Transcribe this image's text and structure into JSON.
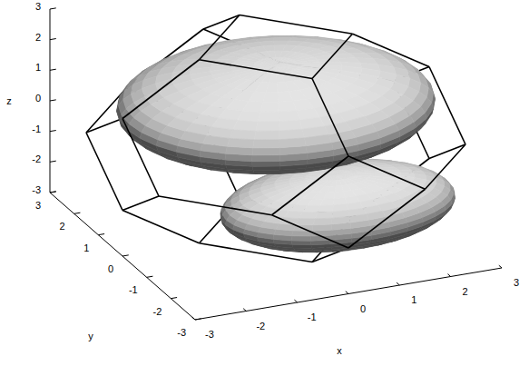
{
  "chart_data": {
    "type": "isosurface3d",
    "xlabel": "x",
    "ylabel": "y",
    "zlabel": "z",
    "xlim": [
      -3,
      3
    ],
    "ylim": [
      -3,
      3
    ],
    "zlim": [
      -3,
      3
    ],
    "xticks": [
      -3,
      -2,
      -1,
      0,
      1,
      2,
      3
    ],
    "yticks": [
      -3,
      -2,
      -1,
      0,
      1,
      2,
      3
    ],
    "zticks": [
      -3,
      -2,
      -1,
      0,
      1,
      2,
      3
    ],
    "color": "#e4e4e4",
    "brillouin_zone": {
      "shape": "truncated octahedron",
      "half_width": 3
    },
    "surfaces": [
      {
        "center": [
          0,
          0,
          1.1
        ],
        "radii": [
          2.9,
          2.4,
          1.3
        ]
      },
      {
        "center": [
          0.5,
          -1.5,
          -1.3
        ],
        "radii": [
          2.2,
          1.4,
          1.0
        ]
      }
    ]
  }
}
